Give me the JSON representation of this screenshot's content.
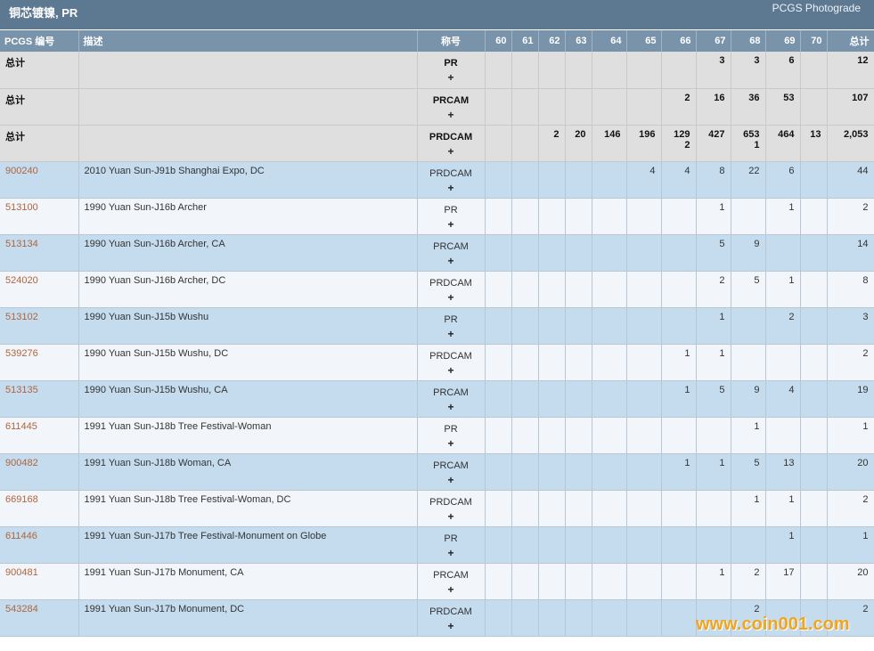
{
  "header": {
    "title": "铜芯镀镍, PR",
    "brand": "PCGS Photograde"
  },
  "columns": [
    "PCGS 编号",
    "描述",
    "称号",
    "60",
    "61",
    "62",
    "63",
    "64",
    "65",
    "66",
    "67",
    "68",
    "69",
    "70",
    "总计"
  ],
  "plus_sign": "+",
  "totals": [
    {
      "label": "总计",
      "designation": "PR",
      "grades": [
        "",
        "",
        "",
        "",
        "",
        "",
        "",
        "3",
        "3",
        "6",
        ""
      ],
      "total": "12"
    },
    {
      "label": "总计",
      "designation": "PRCAM",
      "grades": [
        "",
        "",
        "",
        "",
        "",
        "",
        "2",
        "16",
        "36",
        "53",
        ""
      ],
      "total": "107"
    },
    {
      "label": "总计",
      "designation": "PRDCAM",
      "grades": [
        "",
        "",
        "2",
        "20",
        "146",
        "196",
        "129\n2",
        "427",
        "653\n1",
        "464",
        "13"
      ],
      "total": "2,053"
    }
  ],
  "rows": [
    {
      "code": "900240",
      "desc": "2010 Yuan Sun-J91b Shanghai Expo, DC",
      "designation": "PRDCAM",
      "grades": [
        "",
        "",
        "",
        "",
        "",
        "4",
        "4",
        "8",
        "22",
        "6",
        ""
      ],
      "total": "44"
    },
    {
      "code": "513100",
      "desc": "1990 Yuan Sun-J16b Archer",
      "designation": "PR",
      "grades": [
        "",
        "",
        "",
        "",
        "",
        "",
        "",
        "1",
        "",
        "1",
        ""
      ],
      "total": "2"
    },
    {
      "code": "513134",
      "desc": "1990 Yuan Sun-J16b Archer, CA",
      "designation": "PRCAM",
      "grades": [
        "",
        "",
        "",
        "",
        "",
        "",
        "",
        "5",
        "9",
        "",
        ""
      ],
      "total": "14"
    },
    {
      "code": "524020",
      "desc": "1990 Yuan Sun-J16b Archer, DC",
      "designation": "PRDCAM",
      "grades": [
        "",
        "",
        "",
        "",
        "",
        "",
        "",
        "2",
        "5",
        "1",
        ""
      ],
      "total": "8"
    },
    {
      "code": "513102",
      "desc": "1990 Yuan Sun-J15b Wushu",
      "designation": "PR",
      "grades": [
        "",
        "",
        "",
        "",
        "",
        "",
        "",
        "1",
        "",
        "2",
        ""
      ],
      "total": "3"
    },
    {
      "code": "539276",
      "desc": "1990 Yuan Sun-J15b Wushu, DC",
      "designation": "PRDCAM",
      "grades": [
        "",
        "",
        "",
        "",
        "",
        "",
        "1",
        "1",
        "",
        "",
        ""
      ],
      "total": "2"
    },
    {
      "code": "513135",
      "desc": "1990 Yuan Sun-J15b Wushu, CA",
      "designation": "PRCAM",
      "grades": [
        "",
        "",
        "",
        "",
        "",
        "",
        "1",
        "5",
        "9",
        "4",
        ""
      ],
      "total": "19"
    },
    {
      "code": "611445",
      "desc": "1991 Yuan Sun-J18b Tree Festival-Woman",
      "designation": "PR",
      "grades": [
        "",
        "",
        "",
        "",
        "",
        "",
        "",
        "",
        "1",
        "",
        ""
      ],
      "total": "1"
    },
    {
      "code": "900482",
      "desc": "1991 Yuan Sun-J18b Woman, CA",
      "designation": "PRCAM",
      "grades": [
        "",
        "",
        "",
        "",
        "",
        "",
        "1",
        "1",
        "5",
        "13",
        ""
      ],
      "total": "20"
    },
    {
      "code": "669168",
      "desc": "1991 Yuan Sun-J18b Tree Festival-Woman, DC",
      "designation": "PRDCAM",
      "grades": [
        "",
        "",
        "",
        "",
        "",
        "",
        "",
        "",
        "1",
        "1",
        ""
      ],
      "total": "2"
    },
    {
      "code": "611446",
      "desc": "1991 Yuan Sun-J17b Tree Festival-Monument on Globe",
      "designation": "PR",
      "grades": [
        "",
        "",
        "",
        "",
        "",
        "",
        "",
        "",
        "",
        "1",
        ""
      ],
      "total": "1"
    },
    {
      "code": "900481",
      "desc": "1991 Yuan Sun-J17b Monument, CA",
      "designation": "PRCAM",
      "grades": [
        "",
        "",
        "",
        "",
        "",
        "",
        "",
        "1",
        "2",
        "17",
        ""
      ],
      "total": "20"
    },
    {
      "code": "543284",
      "desc": "1991 Yuan Sun-J17b Monument, DC",
      "designation": "PRDCAM",
      "grades": [
        "",
        "",
        "",
        "",
        "",
        "",
        "",
        "",
        "2",
        "",
        ""
      ],
      "total": "2"
    }
  ],
  "watermark": "www.coin001.com"
}
